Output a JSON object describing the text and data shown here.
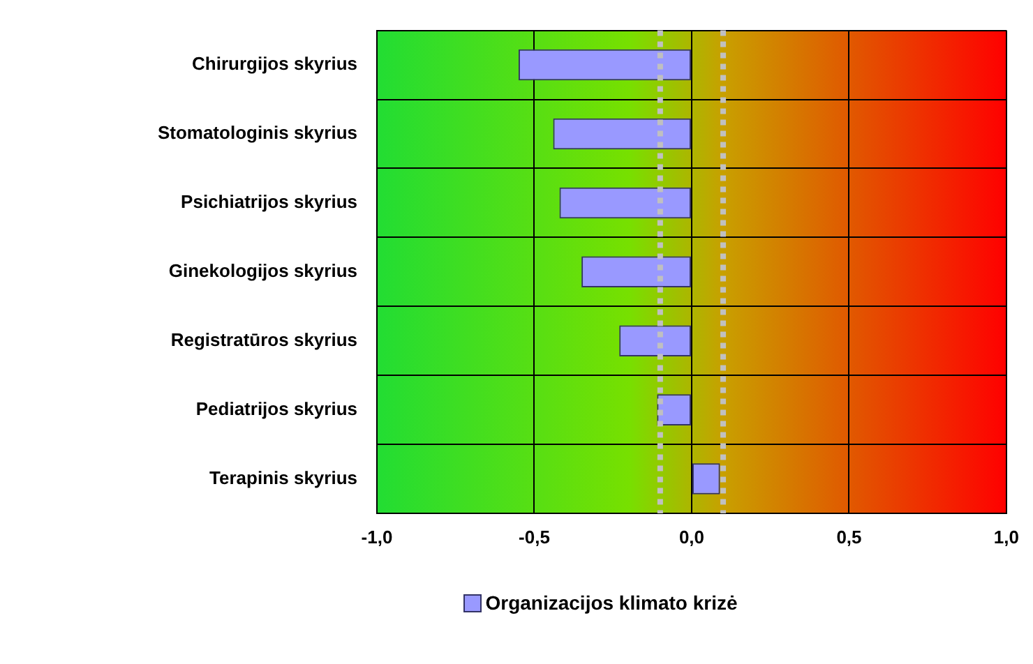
{
  "chart_data": {
    "type": "bar",
    "orientation": "horizontal",
    "categories": [
      "Chirurgijos skyrius",
      "Stomatologinis skyrius",
      "Psichiatrijos skyrius",
      "Ginekologijos skyrius",
      "Registratūros skyrius",
      "Pediatrijos skyrius",
      "Terapinis skyrius"
    ],
    "series": [
      {
        "name": "Organizacijos klimato krizė",
        "color": "#9999ff",
        "values": [
          -0.55,
          -0.44,
          -0.42,
          -0.35,
          -0.23,
          -0.11,
          0.09
        ]
      }
    ],
    "xlim": [
      -1,
      1
    ],
    "xticks": [
      {
        "value": -1,
        "label": "-1,0"
      },
      {
        "value": -0.5,
        "label": "-0,5"
      },
      {
        "value": 0,
        "label": "0,0"
      },
      {
        "value": 0.5,
        "label": "0,5"
      },
      {
        "value": 1,
        "label": "1,0"
      }
    ],
    "ref_lines": [
      {
        "axis": "x",
        "value": -0.1,
        "color": "#c0c0c0",
        "line_style": "dotted"
      },
      {
        "axis": "x",
        "value": 0.1,
        "color": "#c0c0c0",
        "line_style": "dotted"
      }
    ],
    "grid": true,
    "legend": "bottom"
  }
}
